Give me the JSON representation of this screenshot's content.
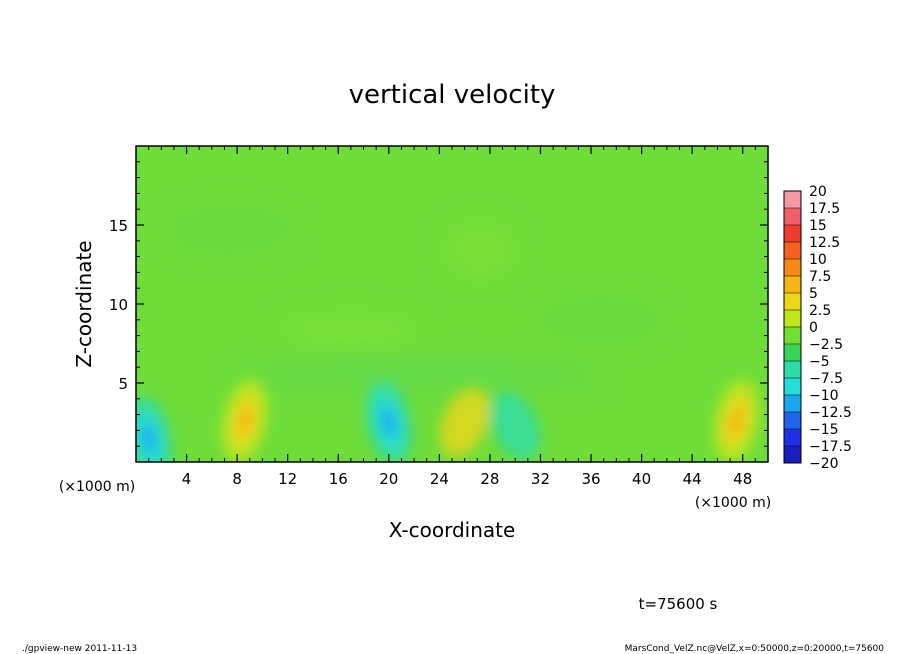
{
  "chart_data": {
    "type": "heatmap",
    "title": "vertical velocity",
    "xlabel": "X-coordinate",
    "ylabel": "Z-coordinate",
    "x_unit_left": "(×1000 m)",
    "x_unit_right": "(×1000 m)",
    "xlim": [
      0,
      50
    ],
    "ylim": [
      0,
      20
    ],
    "x_ticks": [
      4,
      8,
      12,
      16,
      20,
      24,
      28,
      32,
      36,
      40,
      44,
      48
    ],
    "y_ticks": [
      5,
      10,
      15
    ],
    "colorbar": {
      "levels": [
        "20",
        "17.5",
        "15",
        "12.5",
        "10",
        "7.5",
        "5",
        "2.5",
        "0",
        "−2.5",
        "−5",
        "−7.5",
        "−10",
        "−12.5",
        "−15",
        "−17.5",
        "−20"
      ],
      "colors": [
        "#f49aa4",
        "#f25f6b",
        "#f03c2e",
        "#f5611e",
        "#f78a17",
        "#f5b514",
        "#ecd61a",
        "#bfe51d",
        "#72e032",
        "#37d556",
        "#2ddca8",
        "#25dcdc",
        "#1aa7ee",
        "#1f63ef",
        "#1f30e8",
        "#1c1dbf",
        "#6c14bf"
      ]
    },
    "features": [
      {
        "x": 1.0,
        "z": 1.5,
        "value": -10
      },
      {
        "x": 8.6,
        "z": 2.6,
        "value": 7.5
      },
      {
        "x": 20.0,
        "z": 2.5,
        "value": -10
      },
      {
        "x": 26.0,
        "z": 2.5,
        "value": 5
      },
      {
        "x": 30.0,
        "z": 2.3,
        "value": -5
      },
      {
        "x": 47.5,
        "z": 2.6,
        "value": 7.5
      }
    ],
    "time_label": "t=75600 s"
  },
  "footer": {
    "left": "./gpview-new   2011-11-13",
    "right": "MarsCond_VelZ.nc@VelZ,x=0:50000,z=0:20000,t=75600"
  }
}
